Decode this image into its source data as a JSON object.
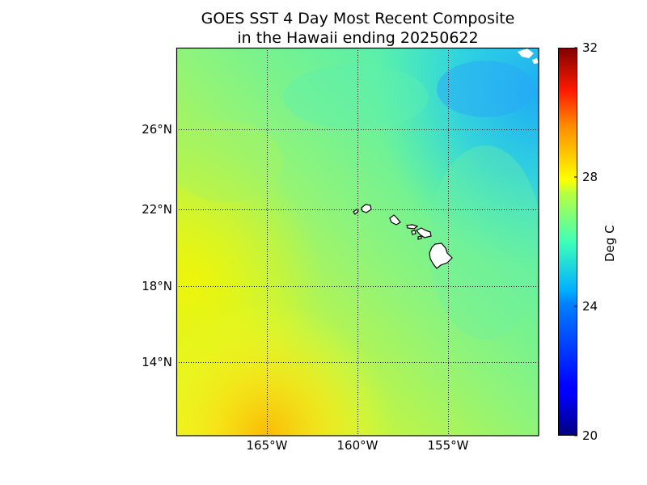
{
  "title_line1": "GOES SST 4 Day Most Recent Composite",
  "title_line2": "in the Hawaii ending 20250622",
  "map": {
    "type": "sea-surface-temperature",
    "lon_range": [
      -170,
      -150
    ],
    "lat_range": [
      10,
      30
    ],
    "projection": "cylindrical",
    "grid": "dotted",
    "lat_ticks": [
      {
        "value": 26,
        "label": "26°N"
      },
      {
        "value": 22,
        "label": "22°N"
      },
      {
        "value": 18,
        "label": "18°N"
      },
      {
        "value": 14,
        "label": "14°N"
      }
    ],
    "lon_ticks": [
      {
        "value": -165,
        "label": "165°W"
      },
      {
        "value": -160,
        "label": "160°W"
      },
      {
        "value": -155,
        "label": "155°W"
      }
    ],
    "features": [
      "Hawaiian Islands (white land mask)",
      "warmer water (~27-28 Deg C) in southwest",
      "cooler water (~24-25 Deg C) in northeast"
    ]
  },
  "colorbar": {
    "label": "Deg C",
    "min": 20,
    "max": 32,
    "colormap": "jet",
    "ticks": [
      {
        "value": 32,
        "label": "32"
      },
      {
        "value": 28,
        "label": "28"
      },
      {
        "value": 24,
        "label": "24"
      },
      {
        "value": 20,
        "label": "20"
      }
    ]
  }
}
